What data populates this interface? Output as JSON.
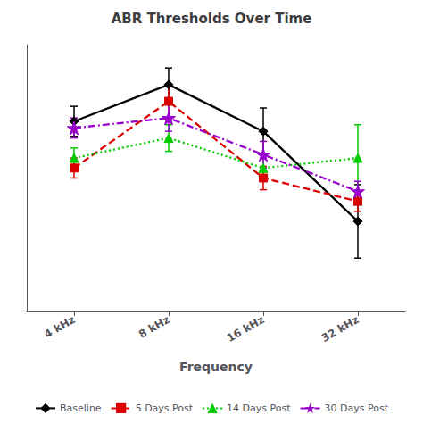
{
  "chart_data": {
    "type": "line",
    "title": "ABR Thresholds Over Time",
    "x_label": "Frequency",
    "categories": [
      "4 kHz",
      "8 kHz",
      "16 kHz",
      "32 kHz"
    ],
    "series": [
      {
        "name": "Baseline",
        "color": "#000000",
        "marker": "diamond",
        "line_style": "solid",
        "values": [
          57,
          68,
          54,
          27
        ],
        "yerr": [
          4.5,
          5,
          7,
          11
        ]
      },
      {
        "name": "5 Days Post",
        "color": "#dd0000",
        "marker": "square",
        "line_style": "dashed",
        "values": [
          43,
          63,
          40,
          33
        ],
        "yerr": [
          3,
          5,
          3.5,
          3
        ]
      },
      {
        "name": "14 Days Post",
        "color": "#00cc00",
        "marker": "triangle",
        "line_style": "dotted",
        "values": [
          46,
          52,
          43,
          46
        ],
        "yerr": [
          3,
          4,
          4,
          10
        ]
      },
      {
        "name": "30 Days Post",
        "color": "#9900cc",
        "marker": "star",
        "line_style": "dashdot",
        "values": [
          55,
          58,
          47,
          36
        ],
        "yerr": [
          3,
          4,
          4,
          3
        ]
      }
    ],
    "ylim": [
      0,
      80
    ],
    "tick_labels": "x",
    "grid": false,
    "legend": "bottom"
  }
}
